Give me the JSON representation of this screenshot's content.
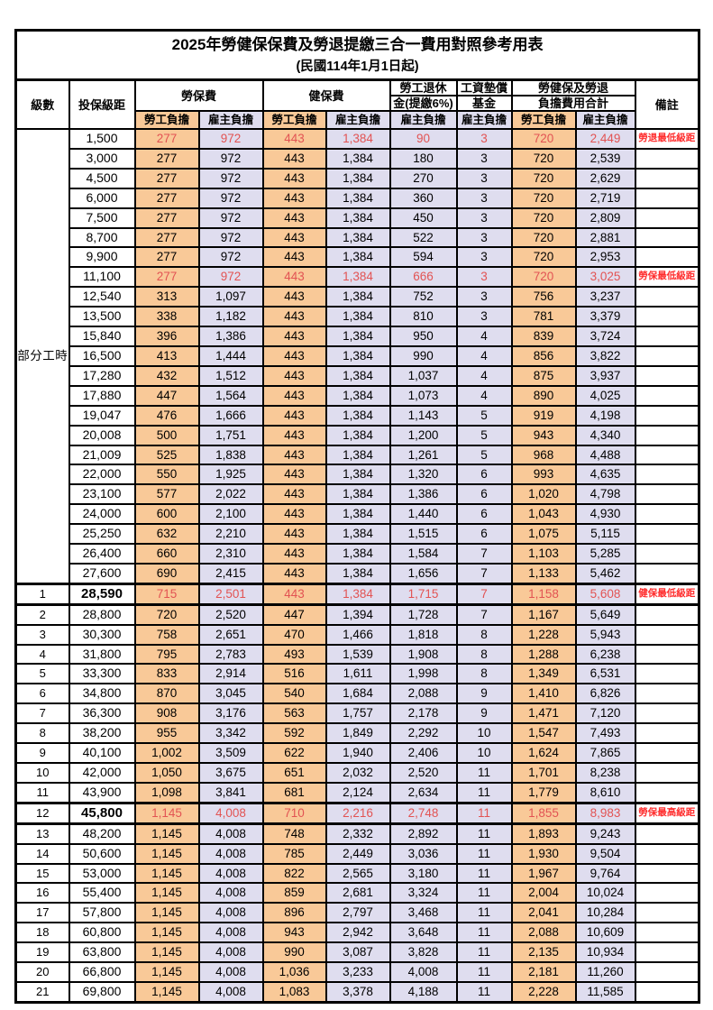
{
  "table": {
    "title": "2025年勞健保保費及勞退提繳三合一費用對照參考用表",
    "subtitle": "(民國114年1月1日起)",
    "colors": {
      "employee_bg": "#F9C998",
      "employer_bg": "#DFDDEF",
      "red_value": "#E25353",
      "red_remark": "#FF2C2C",
      "border": "#000000"
    },
    "header": {
      "level": "級數",
      "bracket": "投保級距",
      "labor_fee": "勞保費",
      "health_fee": "健保費",
      "pension_line1": "勞工退休",
      "pension_line2": "金(提繳6%)",
      "wage_fund_line1": "工資墊償",
      "wage_fund_line2": "基金",
      "total_line1": "勞健保及勞退",
      "total_line2": "負擔費用合計",
      "employee": "勞工負擔",
      "employer": "雇主負擔",
      "remark": "備註"
    },
    "part_time_label": "部分工時",
    "part_time_rowspan": 23,
    "rows": [
      {
        "lvl": "",
        "b": "1,500",
        "v": [
          "277",
          "972",
          "443",
          "1,384",
          "90",
          "3",
          "720",
          "2,449"
        ],
        "n": "勞退最低級距",
        "red": true
      },
      {
        "lvl": "",
        "b": "3,000",
        "v": [
          "277",
          "972",
          "443",
          "1,384",
          "180",
          "3",
          "720",
          "2,539"
        ]
      },
      {
        "lvl": "",
        "b": "4,500",
        "v": [
          "277",
          "972",
          "443",
          "1,384",
          "270",
          "3",
          "720",
          "2,629"
        ]
      },
      {
        "lvl": "",
        "b": "6,000",
        "v": [
          "277",
          "972",
          "443",
          "1,384",
          "360",
          "3",
          "720",
          "2,719"
        ]
      },
      {
        "lvl": "",
        "b": "7,500",
        "v": [
          "277",
          "972",
          "443",
          "1,384",
          "450",
          "3",
          "720",
          "2,809"
        ]
      },
      {
        "lvl": "",
        "b": "8,700",
        "v": [
          "277",
          "972",
          "443",
          "1,384",
          "522",
          "3",
          "720",
          "2,881"
        ]
      },
      {
        "lvl": "",
        "b": "9,900",
        "v": [
          "277",
          "972",
          "443",
          "1,384",
          "594",
          "3",
          "720",
          "2,953"
        ]
      },
      {
        "lvl": "",
        "b": "11,100",
        "v": [
          "277",
          "972",
          "443",
          "1,384",
          "666",
          "3",
          "720",
          "3,025"
        ],
        "n": "勞保最低級距",
        "red": true
      },
      {
        "lvl": "",
        "b": "12,540",
        "v": [
          "313",
          "1,097",
          "443",
          "1,384",
          "752",
          "3",
          "756",
          "3,237"
        ]
      },
      {
        "lvl": "",
        "b": "13,500",
        "v": [
          "338",
          "1,182",
          "443",
          "1,384",
          "810",
          "3",
          "781",
          "3,379"
        ]
      },
      {
        "lvl": "",
        "b": "15,840",
        "v": [
          "396",
          "1,386",
          "443",
          "1,384",
          "950",
          "4",
          "839",
          "3,724"
        ]
      },
      {
        "lvl": "",
        "b": "16,500",
        "v": [
          "413",
          "1,444",
          "443",
          "1,384",
          "990",
          "4",
          "856",
          "3,822"
        ]
      },
      {
        "lvl": "",
        "b": "17,280",
        "v": [
          "432",
          "1,512",
          "443",
          "1,384",
          "1,037",
          "4",
          "875",
          "3,937"
        ]
      },
      {
        "lvl": "",
        "b": "17,880",
        "v": [
          "447",
          "1,564",
          "443",
          "1,384",
          "1,073",
          "4",
          "890",
          "4,025"
        ]
      },
      {
        "lvl": "",
        "b": "19,047",
        "v": [
          "476",
          "1,666",
          "443",
          "1,384",
          "1,143",
          "5",
          "919",
          "4,198"
        ]
      },
      {
        "lvl": "",
        "b": "20,008",
        "v": [
          "500",
          "1,751",
          "443",
          "1,384",
          "1,200",
          "5",
          "943",
          "4,340"
        ]
      },
      {
        "lvl": "",
        "b": "21,009",
        "v": [
          "525",
          "1,838",
          "443",
          "1,384",
          "1,261",
          "5",
          "968",
          "4,488"
        ]
      },
      {
        "lvl": "",
        "b": "22,000",
        "v": [
          "550",
          "1,925",
          "443",
          "1,384",
          "1,320",
          "6",
          "993",
          "4,635"
        ]
      },
      {
        "lvl": "",
        "b": "23,100",
        "v": [
          "577",
          "2,022",
          "443",
          "1,384",
          "1,386",
          "6",
          "1,020",
          "4,798"
        ]
      },
      {
        "lvl": "",
        "b": "24,000",
        "v": [
          "600",
          "2,100",
          "443",
          "1,384",
          "1,440",
          "6",
          "1,043",
          "4,930"
        ]
      },
      {
        "lvl": "",
        "b": "25,250",
        "v": [
          "632",
          "2,210",
          "443",
          "1,384",
          "1,515",
          "6",
          "1,075",
          "5,115"
        ]
      },
      {
        "lvl": "",
        "b": "26,400",
        "v": [
          "660",
          "2,310",
          "443",
          "1,384",
          "1,584",
          "7",
          "1,103",
          "5,285"
        ]
      },
      {
        "lvl": "",
        "b": "27,600",
        "v": [
          "690",
          "2,415",
          "443",
          "1,384",
          "1,656",
          "7",
          "1,133",
          "5,462"
        ]
      },
      {
        "lvl": "1",
        "b": "28,590",
        "v": [
          "715",
          "2,501",
          "443",
          "1,384",
          "1,715",
          "7",
          "1,158",
          "5,608"
        ],
        "n": "健保最低級距",
        "red": true,
        "bold": true,
        "thick": true
      },
      {
        "lvl": "2",
        "b": "28,800",
        "v": [
          "720",
          "2,520",
          "447",
          "1,394",
          "1,728",
          "7",
          "1,167",
          "5,649"
        ]
      },
      {
        "lvl": "3",
        "b": "30,300",
        "v": [
          "758",
          "2,651",
          "470",
          "1,466",
          "1,818",
          "8",
          "1,228",
          "5,943"
        ]
      },
      {
        "lvl": "4",
        "b": "31,800",
        "v": [
          "795",
          "2,783",
          "493",
          "1,539",
          "1,908",
          "8",
          "1,288",
          "6,238"
        ]
      },
      {
        "lvl": "5",
        "b": "33,300",
        "v": [
          "833",
          "2,914",
          "516",
          "1,611",
          "1,998",
          "8",
          "1,349",
          "6,531"
        ]
      },
      {
        "lvl": "6",
        "b": "34,800",
        "v": [
          "870",
          "3,045",
          "540",
          "1,684",
          "2,088",
          "9",
          "1,410",
          "6,826"
        ]
      },
      {
        "lvl": "7",
        "b": "36,300",
        "v": [
          "908",
          "3,176",
          "563",
          "1,757",
          "2,178",
          "9",
          "1,471",
          "7,120"
        ]
      },
      {
        "lvl": "8",
        "b": "38,200",
        "v": [
          "955",
          "3,342",
          "592",
          "1,849",
          "2,292",
          "10",
          "1,547",
          "7,493"
        ]
      },
      {
        "lvl": "9",
        "b": "40,100",
        "v": [
          "1,002",
          "3,509",
          "622",
          "1,940",
          "2,406",
          "10",
          "1,624",
          "7,865"
        ]
      },
      {
        "lvl": "10",
        "b": "42,000",
        "v": [
          "1,050",
          "3,675",
          "651",
          "2,032",
          "2,520",
          "11",
          "1,701",
          "8,238"
        ]
      },
      {
        "lvl": "11",
        "b": "43,900",
        "v": [
          "1,098",
          "3,841",
          "681",
          "2,124",
          "2,634",
          "11",
          "1,779",
          "8,610"
        ]
      },
      {
        "lvl": "12",
        "b": "45,800",
        "v": [
          "1,145",
          "4,008",
          "710",
          "2,216",
          "2,748",
          "11",
          "1,855",
          "8,983"
        ],
        "n": "勞保最高級距",
        "red": true,
        "bold": true,
        "thick": true
      },
      {
        "lvl": "13",
        "b": "48,200",
        "v": [
          "1,145",
          "4,008",
          "748",
          "2,332",
          "2,892",
          "11",
          "1,893",
          "9,243"
        ]
      },
      {
        "lvl": "14",
        "b": "50,600",
        "v": [
          "1,145",
          "4,008",
          "785",
          "2,449",
          "3,036",
          "11",
          "1,930",
          "9,504"
        ]
      },
      {
        "lvl": "15",
        "b": "53,000",
        "v": [
          "1,145",
          "4,008",
          "822",
          "2,565",
          "3,180",
          "11",
          "1,967",
          "9,764"
        ]
      },
      {
        "lvl": "16",
        "b": "55,400",
        "v": [
          "1,145",
          "4,008",
          "859",
          "2,681",
          "3,324",
          "11",
          "2,004",
          "10,024"
        ]
      },
      {
        "lvl": "17",
        "b": "57,800",
        "v": [
          "1,145",
          "4,008",
          "896",
          "2,797",
          "3,468",
          "11",
          "2,041",
          "10,284"
        ]
      },
      {
        "lvl": "18",
        "b": "60,800",
        "v": [
          "1,145",
          "4,008",
          "943",
          "2,942",
          "3,648",
          "11",
          "2,088",
          "10,609"
        ]
      },
      {
        "lvl": "19",
        "b": "63,800",
        "v": [
          "1,145",
          "4,008",
          "990",
          "3,087",
          "3,828",
          "11",
          "2,135",
          "10,934"
        ]
      },
      {
        "lvl": "20",
        "b": "66,800",
        "v": [
          "1,145",
          "4,008",
          "1,036",
          "3,233",
          "4,008",
          "11",
          "2,181",
          "11,260"
        ]
      },
      {
        "lvl": "21",
        "b": "69,800",
        "v": [
          "1,145",
          "4,008",
          "1,083",
          "3,378",
          "4,188",
          "11",
          "2,228",
          "11,585"
        ]
      }
    ]
  }
}
